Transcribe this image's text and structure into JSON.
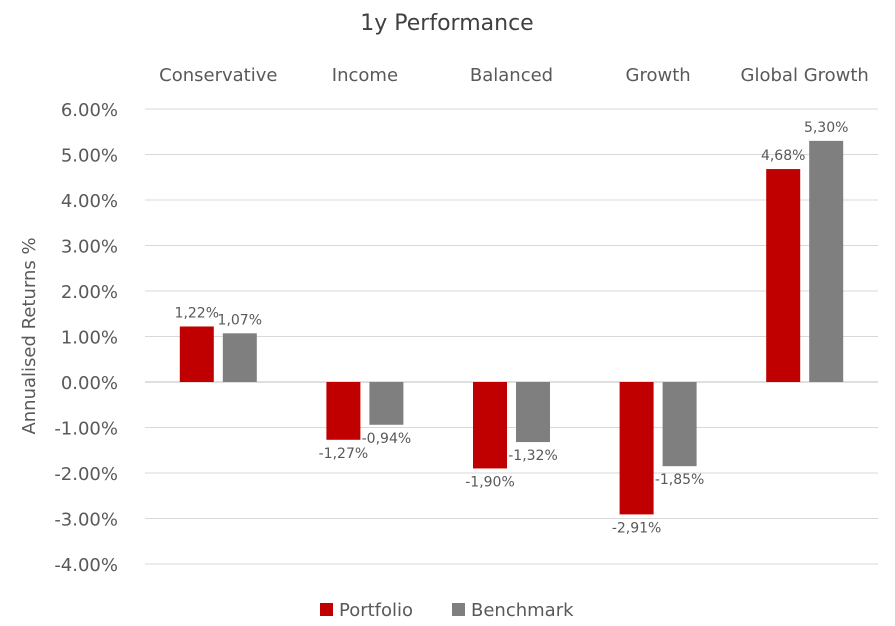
{
  "chart_data": {
    "type": "bar",
    "title": "1y Performance",
    "xlabel": "",
    "ylabel": "Annualised Returns %",
    "categories": [
      "Conservative",
      "Income",
      "Balanced",
      "Growth",
      "Global Growth"
    ],
    "category_axis_position": "top",
    "series": [
      {
        "name": "Portfolio",
        "color": "#C00000",
        "values": [
          1.22,
          -1.27,
          -1.9,
          -2.91,
          4.68
        ],
        "labels": [
          "1,22%",
          "-1,27%",
          "-1,90%",
          "-2,91%",
          "4,68%"
        ]
      },
      {
        "name": "Benchmark",
        "color": "#7F7F7F",
        "values": [
          1.07,
          -0.94,
          -1.32,
          -1.85,
          5.3
        ],
        "labels": [
          "1,07%",
          "-0,94%",
          "-1,32%",
          "-1,85%",
          "5,30%"
        ]
      }
    ],
    "ylim": [
      -4,
      6
    ],
    "yticks": [
      6,
      5,
      4,
      3,
      2,
      1,
      0,
      -1,
      -2,
      -3,
      -4
    ],
    "ytick_labels": [
      "6.00%",
      "5.00%",
      "4.00%",
      "3.00%",
      "2.00%",
      "1.00%",
      "0.00%",
      "-1.00%",
      "-2.00%",
      "-3.00%",
      "-4.00%"
    ],
    "grid": true,
    "legend_position": "bottom"
  }
}
